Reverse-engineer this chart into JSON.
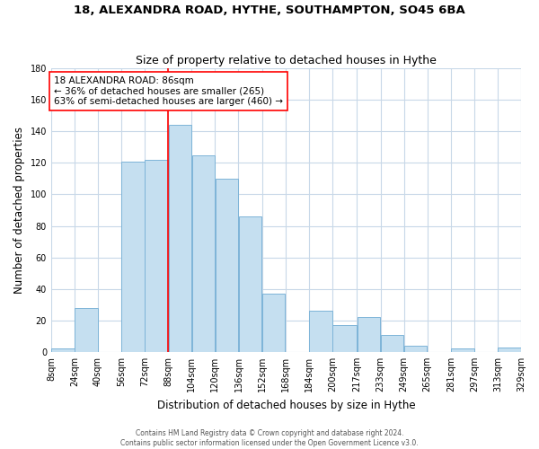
{
  "title": "18, ALEXANDRA ROAD, HYTHE, SOUTHAMPTON, SO45 6BA",
  "subtitle": "Size of property relative to detached houses in Hythe",
  "xlabel": "Distribution of detached houses by size in Hythe",
  "ylabel": "Number of detached properties",
  "bar_bins": [
    8,
    24,
    40,
    56,
    72,
    88,
    104,
    120,
    136,
    152,
    168,
    184,
    200,
    217,
    233,
    249,
    265,
    281,
    297,
    313,
    329
  ],
  "bar_heights": [
    2,
    28,
    0,
    121,
    122,
    144,
    125,
    110,
    86,
    37,
    0,
    26,
    17,
    22,
    11,
    4,
    0,
    2,
    0,
    3
  ],
  "bar_color": "#c5dff0",
  "bar_edge_color": "#7db4d8",
  "tick_labels": [
    "8sqm",
    "24sqm",
    "40sqm",
    "56sqm",
    "72sqm",
    "88sqm",
    "104sqm",
    "120sqm",
    "136sqm",
    "152sqm",
    "168sqm",
    "184sqm",
    "200sqm",
    "217sqm",
    "233sqm",
    "249sqm",
    "265sqm",
    "281sqm",
    "297sqm",
    "313sqm",
    "329sqm"
  ],
  "tick_positions": [
    8,
    24,
    40,
    56,
    72,
    88,
    104,
    120,
    136,
    152,
    168,
    184,
    200,
    217,
    233,
    249,
    265,
    281,
    297,
    313,
    329
  ],
  "ylim": [
    0,
    180
  ],
  "yticks": [
    0,
    20,
    40,
    60,
    80,
    100,
    120,
    140,
    160,
    180
  ],
  "xlim_left": 8,
  "xlim_right": 329,
  "property_line_x": 88,
  "annotation_title": "18 ALEXANDRA ROAD: 86sqm",
  "annotation_line1": "← 36% of detached houses are smaller (265)",
  "annotation_line2": "63% of semi-detached houses are larger (460) →",
  "footer_line1": "Contains HM Land Registry data © Crown copyright and database right 2024.",
  "footer_line2": "Contains public sector information licensed under the Open Government Licence v3.0.",
  "background_color": "#ffffff",
  "grid_color": "#c8d8e8",
  "title_fontsize": 9.5,
  "subtitle_fontsize": 9,
  "axis_label_fontsize": 8.5,
  "tick_fontsize": 7,
  "annot_fontsize": 7.5,
  "footer_fontsize": 5.5
}
